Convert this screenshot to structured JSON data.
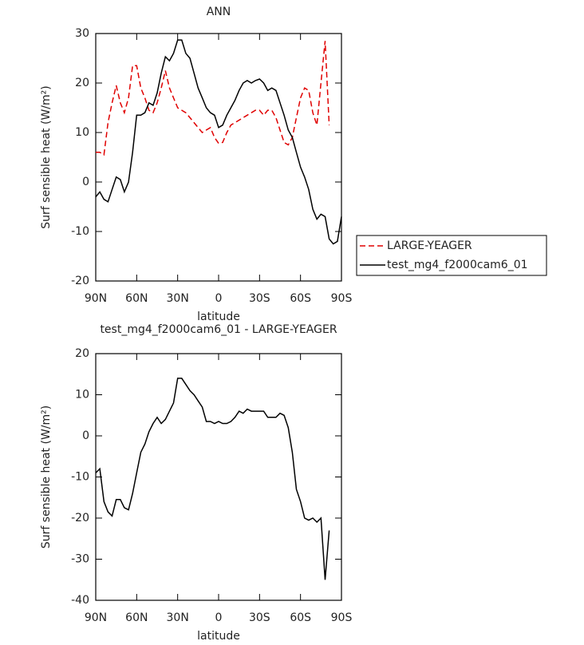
{
  "chart_data": [
    {
      "type": "line",
      "title": "ANN",
      "xlabel": "latitude",
      "ylabel": "Surf sensible heat (W/m²)",
      "x": [
        90,
        87,
        84,
        81,
        78,
        75,
        72,
        69,
        66,
        63,
        60,
        57,
        54,
        51,
        48,
        45,
        42,
        39,
        36,
        33,
        30,
        27,
        24,
        21,
        18,
        15,
        12,
        9,
        6,
        3,
        0,
        -3,
        -6,
        -9,
        -12,
        -15,
        -18,
        -21,
        -24,
        -27,
        -30,
        -33,
        -36,
        -39,
        -42,
        -45,
        -48,
        -51,
        -54,
        -57,
        -60,
        -63,
        -66,
        -69,
        -72,
        -75,
        -78,
        -81,
        -84,
        -87,
        -90
      ],
      "series": [
        {
          "name": "LARGE-YEAGER",
          "color": "#e00000",
          "style": "dashed",
          "values": [
            6,
            6,
            5.5,
            12,
            16,
            19.5,
            16,
            14,
            17,
            23.5,
            23.5,
            19,
            17,
            14.5,
            14,
            16,
            19,
            22.5,
            19,
            17,
            15,
            14.5,
            14,
            13,
            12,
            11,
            10,
            10.5,
            11,
            9,
            7.8,
            8,
            10,
            11.5,
            12,
            12.5,
            13,
            13.5,
            14,
            14.5,
            14.5,
            13.5,
            14.5,
            14.5,
            13,
            10.5,
            8,
            7.5,
            9,
            13,
            17,
            19,
            18.5,
            14,
            11.5,
            20,
            28.5,
            11.5,
            null,
            null,
            null
          ]
        },
        {
          "name": "test_mg4_f2000cam6_01",
          "color": "#000000",
          "style": "solid",
          "values": [
            -3,
            -2,
            -3.5,
            -4,
            -1.5,
            1,
            0.5,
            -2,
            0,
            6,
            13.5,
            13.5,
            14,
            16,
            15.5,
            18,
            22,
            25.3,
            24.5,
            26,
            28.7,
            28.7,
            26,
            25,
            22,
            19,
            17,
            15,
            14,
            13.5,
            11,
            11.5,
            13.5,
            15,
            16.5,
            18.5,
            20,
            20.5,
            20,
            20.5,
            20.8,
            20,
            18.5,
            19,
            18.5,
            16,
            13.5,
            10.5,
            9,
            6,
            3,
            1,
            -1.5,
            -5.5,
            -7.5,
            -6.5,
            -7,
            -11.5,
            -12.5,
            -12,
            -7
          ]
        }
      ],
      "xlim": [
        90,
        -90
      ],
      "xticks": [
        {
          "value": 90,
          "label": "90N"
        },
        {
          "value": 60,
          "label": "60N"
        },
        {
          "value": 30,
          "label": "30N"
        },
        0,
        {
          "value": -30,
          "label": "30S"
        },
        {
          "value": -60,
          "label": "60S"
        },
        {
          "value": -90,
          "label": "90S"
        }
      ],
      "ylim": [
        -20,
        30
      ],
      "yticks": [
        -20,
        -10,
        0,
        10,
        20,
        30
      ],
      "legend": "outside right"
    },
    {
      "type": "line",
      "title": "test_mg4_f2000cam6_01 - LARGE-YEAGER",
      "xlabel": "latitude",
      "ylabel": "Surf sensible heat (W/m²)",
      "x": [
        90,
        87,
        84,
        81,
        78,
        75,
        72,
        69,
        66,
        63,
        60,
        57,
        54,
        51,
        48,
        45,
        42,
        39,
        36,
        33,
        30,
        27,
        24,
        21,
        18,
        15,
        12,
        9,
        6,
        3,
        0,
        -3,
        -6,
        -9,
        -12,
        -15,
        -18,
        -21,
        -24,
        -27,
        -30,
        -33,
        -36,
        -39,
        -42,
        -45,
        -48,
        -51,
        -54,
        -57,
        -60,
        -63,
        -66,
        -69,
        -72,
        -75,
        -78,
        -81,
        -84,
        -87,
        -90
      ],
      "series": [
        {
          "color": "#000000",
          "style": "solid",
          "values": [
            -9,
            -8,
            -16,
            -18.5,
            -19.5,
            -15.5,
            -15.5,
            -17.5,
            -18,
            -14,
            -9,
            -4,
            -2,
            1,
            3,
            4.5,
            3,
            4,
            6,
            8,
            14,
            14,
            12.5,
            11,
            10,
            8.5,
            7,
            3.5,
            3.5,
            3,
            3.5,
            3,
            3,
            3.5,
            4.5,
            6,
            5.5,
            6.5,
            6,
            6,
            6,
            6,
            4.5,
            4.5,
            4.5,
            5.5,
            5,
            2,
            -4,
            -13,
            -16,
            -20,
            -20.5,
            -20,
            -21,
            -20,
            -35,
            -23,
            null,
            null,
            null
          ]
        }
      ],
      "xlim": [
        90,
        -90
      ],
      "xticks": [
        {
          "value": 90,
          "label": "90N"
        },
        {
          "value": 60,
          "label": "60N"
        },
        {
          "value": 30,
          "label": "30N"
        },
        0,
        {
          "value": -30,
          "label": "30S"
        },
        {
          "value": -60,
          "label": "60S"
        },
        {
          "value": -90,
          "label": "90S"
        }
      ],
      "ylim": [
        -40,
        20
      ],
      "yticks": [
        -40,
        -30,
        -20,
        -10,
        0,
        10,
        20
      ]
    }
  ]
}
